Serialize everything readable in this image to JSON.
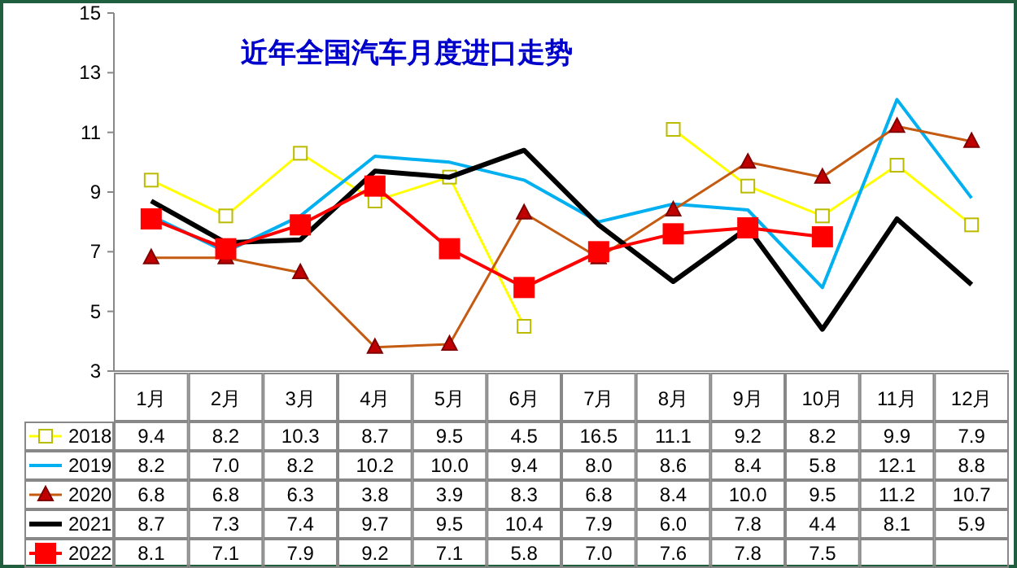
{
  "chart_data": {
    "type": "line",
    "title": "近年全国汽车月度进口走势",
    "categories": [
      "1月",
      "2月",
      "3月",
      "4月",
      "5月",
      "6月",
      "7月",
      "8月",
      "9月",
      "10月",
      "11月",
      "12月"
    ],
    "series": [
      {
        "name": "2018",
        "color": "#ffff00",
        "marker": "square",
        "values": [
          9.4,
          8.2,
          10.3,
          8.7,
          9.5,
          4.5,
          null,
          11.1,
          9.2,
          8.2,
          9.9,
          7.9
        ],
        "value_labels": [
          "9.4",
          "8.2",
          "10.3",
          "8.7",
          "9.5",
          "4.5",
          "16.5",
          "11.1",
          "9.2",
          "8.2",
          "9.9",
          "7.9"
        ]
      },
      {
        "name": "2019",
        "color": "#00b0f0",
        "marker": "none",
        "values": [
          8.2,
          7.0,
          8.2,
          10.2,
          10.0,
          9.4,
          8.0,
          8.6,
          8.4,
          5.8,
          12.1,
          8.8
        ],
        "value_labels": [
          "8.2",
          "7.0",
          "8.2",
          "10.2",
          "10.0",
          "9.4",
          "8.0",
          "8.6",
          "8.4",
          "5.8",
          "12.1",
          "8.8"
        ]
      },
      {
        "name": "2020",
        "color": "#c55a11",
        "marker": "triangle",
        "values": [
          6.8,
          6.8,
          6.3,
          3.8,
          3.9,
          8.3,
          6.8,
          8.4,
          10.0,
          9.5,
          11.2,
          10.7
        ],
        "value_labels": [
          "6.8",
          "6.8",
          "6.3",
          "3.8",
          "3.9",
          "8.3",
          "6.8",
          "8.4",
          "10.0",
          "9.5",
          "11.2",
          "10.7"
        ]
      },
      {
        "name": "2021",
        "color": "#000000",
        "marker": "none",
        "values": [
          8.7,
          7.3,
          7.4,
          9.7,
          9.5,
          10.4,
          7.9,
          6.0,
          7.8,
          4.4,
          8.1,
          5.9
        ],
        "value_labels": [
          "8.7",
          "7.3",
          "7.4",
          "9.7",
          "9.5",
          "10.4",
          "7.9",
          "6.0",
          "7.8",
          "4.4",
          "8.1",
          "5.9"
        ]
      },
      {
        "name": "2022",
        "color": "#ff0000",
        "marker": "square",
        "values": [
          8.1,
          7.1,
          7.9,
          9.2,
          7.1,
          5.8,
          7.0,
          7.6,
          7.8,
          7.5,
          null,
          null
        ],
        "value_labels": [
          "8.1",
          "7.1",
          "7.9",
          "9.2",
          "7.1",
          "5.8",
          "7.0",
          "7.6",
          "7.8",
          "7.5",
          null,
          null
        ]
      }
    ],
    "ylim": [
      3,
      15
    ],
    "yticks": [
      3,
      5,
      7,
      9,
      11,
      13,
      15
    ],
    "legend": "bottom",
    "grid": false
  }
}
